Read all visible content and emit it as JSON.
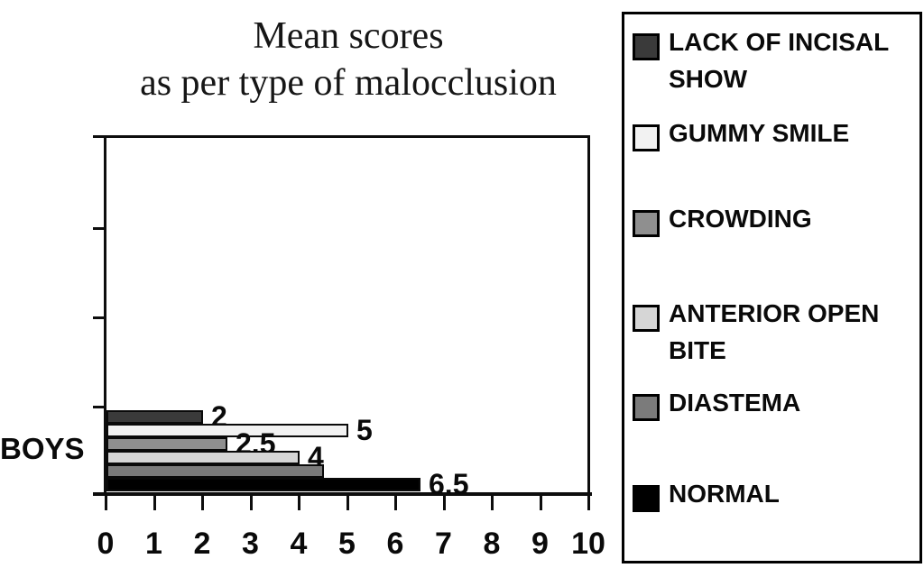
{
  "chart": {
    "title_line1": "Mean scores",
    "title_line2": "as per type of malocclusion",
    "category_label": "BOYS"
  },
  "chart_data": {
    "type": "bar",
    "orientation": "horizontal",
    "title": "Mean scores as per type of malocclusion",
    "categories": [
      "BOYS"
    ],
    "series": [
      {
        "name": "LACK OF INCISAL SHOW",
        "values": [
          2
        ],
        "data_label": "2",
        "color": "#3a3a3a"
      },
      {
        "name": "GUMMY SMILE",
        "values": [
          5
        ],
        "data_label": "5",
        "color": "#f2f2f2"
      },
      {
        "name": "CROWDING",
        "values": [
          2.5
        ],
        "data_label": "2.5",
        "color": "#8f8f8f"
      },
      {
        "name": "ANTERIOR OPEN BITE",
        "values": [
          4
        ],
        "data_label": "4",
        "color": "#d6d6d6"
      },
      {
        "name": "DIASTEMA",
        "values": [
          4.5
        ],
        "data_label": "",
        "color": "#7b7b7b"
      },
      {
        "name": "NORMAL",
        "values": [
          6.5
        ],
        "data_label": "6.5",
        "color": "#000000"
      }
    ],
    "xlim": [
      0,
      10
    ],
    "x_tick_labels": [
      "0",
      "1",
      "2",
      "3",
      "4",
      "5",
      "6",
      "7",
      "8",
      "9",
      "10"
    ],
    "xlabel": "",
    "ylabel": "",
    "grid": false,
    "legend_position": "right"
  }
}
